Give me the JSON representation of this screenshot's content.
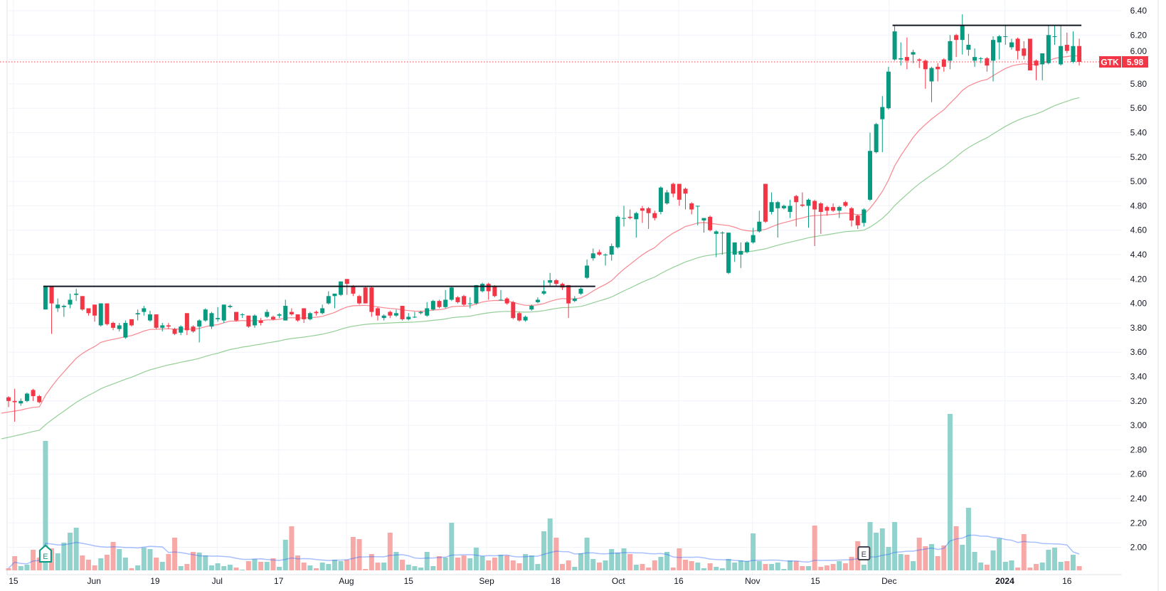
{
  "chart_data": {
    "type": "candlestick",
    "title": "",
    "symbol": "GTK",
    "last_price": "5.98",
    "colors": {
      "up": "#089981",
      "down": "#F23645",
      "vol_up": "#92D2CC",
      "vol_down": "#F7A9A7",
      "ma_fast": "#F7525F",
      "ma_slow": "#66BB6A",
      "vol_ma": "#2962FF",
      "resistance": "#131722",
      "grid": "#F0F3FA"
    },
    "ylim": [
      2.0,
      6.4
    ],
    "y_ticks": [
      "6.40",
      "6.20",
      "6.00",
      "5.80",
      "5.60",
      "5.40",
      "5.20",
      "5.00",
      "4.80",
      "4.60",
      "4.40",
      "4.20",
      "4.00",
      "3.80",
      "3.60",
      "3.40",
      "3.20",
      "3.00",
      "2.80",
      "2.60",
      "2.40",
      "2.20",
      "2.00"
    ],
    "x_ticks": [
      {
        "label": "15",
        "index": 0.8
      },
      {
        "label": "Jun",
        "index": 13.9
      },
      {
        "label": "19",
        "index": 23.8
      },
      {
        "label": "Jul",
        "index": 33.9
      },
      {
        "label": "17",
        "index": 43.9
      },
      {
        "label": "Aug",
        "index": 54.9
      },
      {
        "label": "15",
        "index": 65.0
      },
      {
        "label": "Sep",
        "index": 77.7
      },
      {
        "label": "18",
        "index": 88.9
      },
      {
        "label": "Oct",
        "index": 99.1
      },
      {
        "label": "16",
        "index": 108.9
      },
      {
        "label": "Nov",
        "index": 120.9
      },
      {
        "label": "15",
        "index": 131.1
      },
      {
        "label": "Dec",
        "index": 143.1
      },
      {
        "label": "2024",
        "index": 161.9,
        "bold": true
      },
      {
        "label": "16",
        "index": 172.0
      }
    ],
    "indicators": {
      "ma_fast": {
        "type": "EMA",
        "period": 20,
        "seed": 3.1
      },
      "ma_slow": {
        "type": "EMA",
        "period": 50,
        "seed": 2.89
      },
      "vol_ma": {
        "type": "SMA",
        "period": 20
      }
    },
    "resistance_lines": [
      {
        "price": 4.14,
        "from_index": 6,
        "to_index": 95
      },
      {
        "price": 6.28,
        "from_index": 144,
        "to_index": 174
      }
    ],
    "events": [
      {
        "label": "E",
        "index": 6,
        "style": "reported"
      },
      {
        "label": "E",
        "index": 139,
        "style": "upcoming"
      }
    ],
    "ohlc": [
      [
        3.23,
        3.24,
        3.15,
        3.2
      ],
      [
        3.2,
        3.3,
        3.03,
        3.19
      ],
      [
        3.18,
        3.22,
        3.16,
        3.2
      ],
      [
        3.2,
        3.27,
        3.19,
        3.26
      ],
      [
        3.29,
        3.3,
        3.2,
        3.24
      ],
      [
        3.24,
        3.25,
        3.18,
        3.19
      ],
      [
        3.95,
        4.14,
        3.95,
        4.14
      ],
      [
        4.14,
        4.14,
        3.75,
        4.0
      ],
      [
        3.96,
        4.04,
        3.93,
        3.99
      ],
      [
        3.97,
        3.99,
        3.89,
        3.98
      ],
      [
        3.99,
        4.08,
        3.96,
        4.03
      ],
      [
        4.07,
        4.12,
        4.02,
        4.08
      ],
      [
        4.06,
        4.06,
        3.94,
        3.95
      ],
      [
        3.96,
        3.96,
        3.9,
        3.92
      ],
      [
        3.99,
        3.99,
        3.85,
        3.9
      ],
      [
        3.82,
        4.0,
        3.81,
        4.0
      ],
      [
        4.0,
        4.0,
        3.82,
        3.83
      ],
      [
        3.84,
        3.85,
        3.78,
        3.8
      ],
      [
        3.79,
        3.84,
        3.77,
        3.82
      ],
      [
        3.72,
        3.86,
        3.71,
        3.84
      ],
      [
        3.87,
        3.87,
        3.81,
        3.82
      ],
      [
        3.91,
        3.95,
        3.86,
        3.92
      ],
      [
        3.93,
        3.98,
        3.9,
        3.96
      ],
      [
        3.86,
        3.94,
        3.85,
        3.91
      ],
      [
        3.91,
        3.91,
        3.79,
        3.8
      ],
      [
        3.8,
        3.84,
        3.77,
        3.82
      ],
      [
        3.82,
        3.84,
        3.79,
        3.81
      ],
      [
        3.79,
        3.8,
        3.74,
        3.75
      ],
      [
        3.76,
        3.82,
        3.74,
        3.81
      ],
      [
        3.92,
        3.92,
        3.74,
        3.78
      ],
      [
        3.81,
        3.82,
        3.76,
        3.77
      ],
      [
        3.81,
        3.87,
        3.68,
        3.86
      ],
      [
        3.86,
        3.96,
        3.85,
        3.95
      ],
      [
        3.81,
        3.93,
        3.79,
        3.92
      ],
      [
        3.87,
        3.97,
        3.85,
        3.88
      ],
      [
        3.86,
        3.99,
        3.84,
        3.99
      ],
      [
        3.97,
        3.99,
        3.96,
        3.98
      ],
      [
        3.93,
        3.93,
        3.85,
        3.86
      ],
      [
        3.91,
        3.92,
        3.88,
        3.91
      ],
      [
        3.9,
        3.9,
        3.8,
        3.81
      ],
      [
        3.82,
        3.91,
        3.8,
        3.9
      ],
      [
        3.86,
        3.88,
        3.82,
        3.84
      ],
      [
        3.89,
        3.95,
        3.88,
        3.93
      ],
      [
        3.89,
        3.9,
        3.86,
        3.87
      ],
      [
        3.9,
        3.92,
        3.88,
        3.91
      ],
      [
        3.86,
        4.03,
        3.86,
        3.98
      ],
      [
        3.93,
        3.96,
        3.9,
        3.91
      ],
      [
        3.91,
        3.91,
        3.85,
        3.86
      ],
      [
        3.96,
        3.96,
        3.84,
        3.87
      ],
      [
        3.87,
        3.93,
        3.86,
        3.92
      ],
      [
        3.93,
        3.94,
        3.9,
        3.92
      ],
      [
        3.92,
        3.99,
        3.91,
        3.96
      ],
      [
        4.0,
        4.1,
        3.99,
        4.06
      ],
      [
        4.06,
        4.08,
        3.96,
        4.08
      ],
      [
        4.07,
        4.18,
        4.06,
        4.18
      ],
      [
        4.2,
        4.2,
        4.07,
        4.16
      ],
      [
        4.14,
        4.15,
        4.06,
        4.08
      ],
      [
        4.06,
        4.07,
        3.99,
        4.0
      ],
      [
        4.13,
        4.14,
        4.0,
        4.0
      ],
      [
        4.13,
        4.14,
        3.89,
        3.93
      ],
      [
        3.96,
        3.97,
        3.86,
        3.9
      ],
      [
        3.88,
        3.91,
        3.86,
        3.9
      ],
      [
        3.93,
        3.94,
        3.88,
        3.9
      ],
      [
        3.9,
        3.95,
        3.89,
        3.92
      ],
      [
        3.98,
        3.98,
        3.86,
        3.87
      ],
      [
        3.87,
        3.92,
        3.86,
        3.89
      ],
      [
        3.89,
        3.93,
        3.88,
        3.89
      ],
      [
        3.92,
        3.94,
        3.91,
        3.93
      ],
      [
        3.9,
        4.01,
        3.89,
        3.96
      ],
      [
        3.95,
        4.03,
        3.94,
        4.02
      ],
      [
        4.02,
        4.03,
        3.96,
        3.97
      ],
      [
        3.97,
        4.11,
        3.96,
        4.03
      ],
      [
        4.03,
        4.14,
        4.02,
        4.13
      ],
      [
        4.05,
        4.06,
        4.0,
        4.01
      ],
      [
        4.06,
        4.07,
        3.98,
        3.99
      ],
      [
        4.0,
        4.05,
        3.96,
        4.0
      ],
      [
        4.0,
        4.15,
        3.99,
        4.15
      ],
      [
        4.1,
        4.17,
        4.09,
        4.16
      ],
      [
        4.16,
        4.17,
        4.03,
        4.1
      ],
      [
        4.14,
        4.15,
        4.05,
        4.06
      ],
      [
        4.03,
        4.11,
        4.03,
        4.03
      ],
      [
        4.04,
        4.05,
        3.99,
        4.0
      ],
      [
        4.01,
        4.02,
        3.87,
        3.88
      ],
      [
        3.92,
        3.93,
        3.85,
        3.86
      ],
      [
        3.86,
        3.9,
        3.85,
        3.89
      ],
      [
        3.95,
        3.99,
        3.94,
        3.98
      ],
      [
        4.01,
        4.05,
        4.0,
        4.03
      ],
      [
        4.08,
        4.19,
        4.07,
        4.1
      ],
      [
        4.17,
        4.25,
        4.14,
        4.19
      ],
      [
        4.19,
        4.2,
        4.14,
        4.16
      ],
      [
        4.16,
        4.17,
        4.11,
        4.13
      ],
      [
        4.15,
        4.15,
        3.88,
        4.0
      ],
      [
        4.02,
        4.06,
        4.01,
        4.04
      ],
      [
        4.08,
        4.13,
        4.07,
        4.12
      ],
      [
        4.21,
        4.36,
        4.2,
        4.31
      ],
      [
        4.37,
        4.45,
        4.35,
        4.41
      ],
      [
        4.42,
        4.44,
        4.39,
        4.4
      ],
      [
        4.4,
        4.41,
        4.31,
        4.4
      ],
      [
        4.4,
        4.49,
        4.35,
        4.47
      ],
      [
        4.46,
        4.72,
        4.45,
        4.71
      ],
      [
        4.7,
        4.8,
        4.63,
        4.7
      ],
      [
        4.71,
        4.77,
        4.69,
        4.7
      ],
      [
        4.69,
        4.75,
        4.54,
        4.74
      ],
      [
        4.78,
        4.8,
        4.66,
        4.76
      ],
      [
        4.78,
        4.79,
        4.61,
        4.74
      ],
      [
        4.74,
        4.76,
        4.68,
        4.7
      ],
      [
        4.75,
        4.96,
        4.73,
        4.95
      ],
      [
        4.82,
        4.93,
        4.81,
        4.91
      ],
      [
        4.98,
        4.99,
        4.87,
        4.9
      ],
      [
        4.98,
        4.98,
        4.8,
        4.85
      ],
      [
        4.94,
        4.95,
        4.77,
        4.9
      ],
      [
        4.82,
        4.83,
        4.73,
        4.77
      ],
      [
        4.8,
        4.8,
        4.64,
        4.8
      ],
      [
        4.68,
        4.7,
        4.58,
        4.7
      ],
      [
        4.71,
        4.72,
        4.59,
        4.6
      ],
      [
        4.57,
        4.6,
        4.38,
        4.59
      ],
      [
        4.58,
        4.59,
        4.4,
        4.58
      ],
      [
        4.25,
        4.58,
        4.24,
        4.58
      ],
      [
        4.4,
        4.5,
        4.34,
        4.5
      ],
      [
        4.4,
        4.5,
        4.29,
        4.43
      ],
      [
        4.42,
        4.51,
        4.41,
        4.5
      ],
      [
        4.5,
        4.62,
        4.49,
        4.56
      ],
      [
        4.59,
        4.76,
        4.58,
        4.67
      ],
      [
        4.98,
        4.98,
        4.66,
        4.67
      ],
      [
        4.75,
        4.91,
        4.73,
        4.83
      ],
      [
        4.78,
        4.84,
        4.54,
        4.83
      ],
      [
        4.78,
        4.81,
        4.77,
        4.8
      ],
      [
        4.75,
        4.85,
        4.7,
        4.8
      ],
      [
        4.88,
        4.89,
        4.63,
        4.83
      ],
      [
        4.81,
        4.91,
        4.79,
        4.8
      ],
      [
        4.8,
        4.86,
        4.62,
        4.85
      ],
      [
        4.84,
        4.85,
        4.47,
        4.77
      ],
      [
        4.82,
        4.83,
        4.57,
        4.75
      ],
      [
        4.79,
        4.8,
        4.72,
        4.76
      ],
      [
        4.79,
        4.82,
        4.75,
        4.76
      ],
      [
        4.76,
        4.8,
        4.7,
        4.79
      ],
      [
        4.83,
        4.84,
        4.79,
        4.8
      ],
      [
        4.78,
        4.79,
        4.63,
        4.68
      ],
      [
        4.72,
        4.73,
        4.61,
        4.64
      ],
      [
        4.66,
        4.78,
        4.63,
        4.77
      ],
      [
        4.85,
        5.4,
        4.84,
        5.25
      ],
      [
        5.24,
        5.48,
        5.23,
        5.47
      ],
      [
        5.51,
        5.7,
        5.24,
        5.61
      ],
      [
        5.6,
        5.94,
        5.59,
        5.9
      ],
      [
        6.0,
        6.28,
        5.99,
        6.23
      ],
      [
        6.0,
        6.14,
        5.95,
        6.01
      ],
      [
        6.02,
        6.18,
        5.92,
        5.99
      ],
      [
        6.04,
        6.08,
        5.97,
        6.06
      ],
      [
        6.0,
        6.01,
        5.93,
        5.99
      ],
      [
        5.99,
        6.0,
        5.76,
        5.92
      ],
      [
        5.82,
        5.94,
        5.65,
        5.93
      ],
      [
        5.94,
        5.97,
        5.82,
        5.92
      ],
      [
        6.0,
        6.01,
        5.9,
        5.94
      ],
      [
        5.99,
        6.2,
        5.92,
        6.15
      ],
      [
        6.2,
        6.21,
        6.02,
        6.16
      ],
      [
        6.16,
        6.37,
        6.04,
        6.28
      ],
      [
        6.08,
        6.21,
        6.03,
        6.12
      ],
      [
        5.99,
        6.09,
        5.94,
        6.02
      ],
      [
        6.01,
        6.02,
        5.97,
        6.01
      ],
      [
        6.01,
        6.02,
        5.9,
        5.95
      ],
      [
        5.99,
        6.19,
        5.82,
        6.16
      ],
      [
        6.14,
        6.2,
        6.0,
        6.19
      ],
      [
        6.19,
        6.28,
        6.12,
        6.19
      ],
      [
        6.1,
        6.17,
        6.08,
        6.14
      ],
      [
        6.17,
        6.18,
        6.0,
        6.07
      ],
      [
        6.09,
        6.15,
        6.0,
        6.03
      ],
      [
        6.17,
        6.17,
        5.91,
        5.91
      ],
      [
        5.99,
        6.0,
        5.83,
        5.95
      ],
      [
        5.96,
        6.05,
        5.83,
        6.05
      ],
      [
        5.97,
        6.28,
        5.96,
        6.2
      ],
      [
        6.19,
        6.28,
        6.12,
        6.19
      ],
      [
        5.96,
        6.28,
        5.95,
        6.11
      ],
      [
        6.12,
        6.22,
        6.05,
        6.07
      ],
      [
        5.98,
        6.23,
        5.97,
        6.11
      ],
      [
        6.11,
        6.17,
        5.95,
        5.98
      ]
    ],
    "volume_relative": [
      3,
      20,
      6,
      8,
      29,
      18,
      182,
      31,
      24,
      39,
      53,
      60,
      21,
      15,
      7,
      17,
      22,
      40,
      30,
      18,
      3,
      7,
      32,
      30,
      18,
      12,
      23,
      46,
      6,
      9,
      26,
      25,
      21,
      7,
      10,
      6,
      8,
      4,
      1,
      13,
      16,
      12,
      12,
      17,
      5,
      43,
      62,
      21,
      11,
      7,
      3,
      11,
      9,
      15,
      13,
      15,
      47,
      44,
      2,
      23,
      11,
      11,
      53,
      26,
      15,
      8,
      6,
      4,
      26,
      6,
      20,
      18,
      67,
      18,
      21,
      17,
      32,
      20,
      14,
      18,
      22,
      21,
      14,
      10,
      23,
      21,
      9,
      55,
      73,
      46,
      9,
      14,
      5,
      24,
      46,
      16,
      11,
      14,
      30,
      25,
      31,
      23,
      8,
      9,
      4,
      14,
      19,
      26,
      4,
      31,
      15,
      13,
      11,
      3,
      10,
      5,
      3,
      16,
      11,
      14,
      13,
      52,
      13,
      9,
      9,
      11,
      2,
      14,
      13,
      6,
      6,
      63,
      5,
      7,
      9,
      13,
      10,
      19,
      41,
      8,
      68,
      53,
      59,
      33,
      68,
      23,
      22,
      13,
      46,
      34,
      37,
      20,
      35,
      220,
      62,
      36,
      88,
      26,
      11,
      8,
      28,
      45,
      12,
      14,
      4,
      51,
      4,
      9,
      11,
      29,
      32,
      12,
      13,
      22,
      6
    ]
  }
}
